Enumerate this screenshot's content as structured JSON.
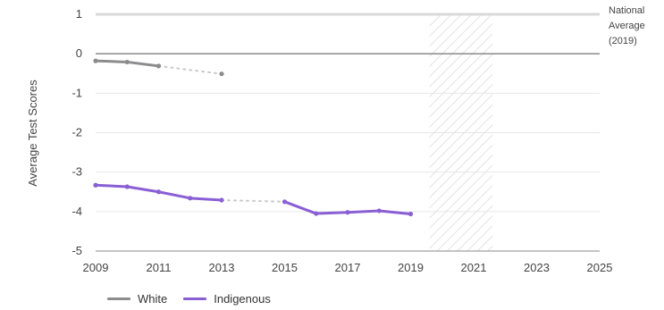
{
  "chart_data": {
    "type": "line",
    "ylabel": "Average Test Scores",
    "xlabel": "",
    "xlim": [
      2009,
      2025
    ],
    "ylim": [
      -5,
      1
    ],
    "x_ticks": [
      "2009",
      "2011",
      "2013",
      "2015",
      "2017",
      "2019",
      "2021",
      "2023",
      "2025"
    ],
    "y_ticks": [
      "1",
      "0",
      "-1",
      "-2",
      "-3",
      "-4",
      "-5"
    ],
    "grid": "horizontal",
    "reference_line": {
      "value": 0,
      "label_lines": [
        "National",
        "Average",
        "(2019)"
      ]
    },
    "shaded_region": {
      "x_start": 2019.6,
      "x_end": 2021.6,
      "pattern": "hatched"
    },
    "legend": {
      "placement": "bottom-left"
    },
    "series": [
      {
        "name": "White",
        "color": "#8c8c8e",
        "points": [
          {
            "x": 2009,
            "y": -0.18
          },
          {
            "x": 2010,
            "y": -0.21
          },
          {
            "x": 2011,
            "y": -0.31
          }
        ],
        "dotted_points": [
          {
            "x": 2011,
            "y": -0.31
          },
          {
            "x": 2013,
            "y": -0.51
          }
        ]
      },
      {
        "name": "Indigenous",
        "color": "#8a5fd6",
        "points": [
          {
            "x": 2009,
            "y": -3.33
          },
          {
            "x": 2010,
            "y": -3.37
          },
          {
            "x": 2011,
            "y": -3.5
          },
          {
            "x": 2012,
            "y": -3.66
          },
          {
            "x": 2013,
            "y": -3.71
          }
        ],
        "dotted_points": [
          {
            "x": 2013,
            "y": -3.71
          },
          {
            "x": 2015,
            "y": -3.75
          }
        ],
        "points_after": [
          {
            "x": 2015,
            "y": -3.75
          },
          {
            "x": 2016,
            "y": -4.05
          },
          {
            "x": 2017,
            "y": -4.02
          },
          {
            "x": 2018,
            "y": -3.98
          },
          {
            "x": 2019,
            "y": -4.06
          }
        ]
      }
    ]
  }
}
